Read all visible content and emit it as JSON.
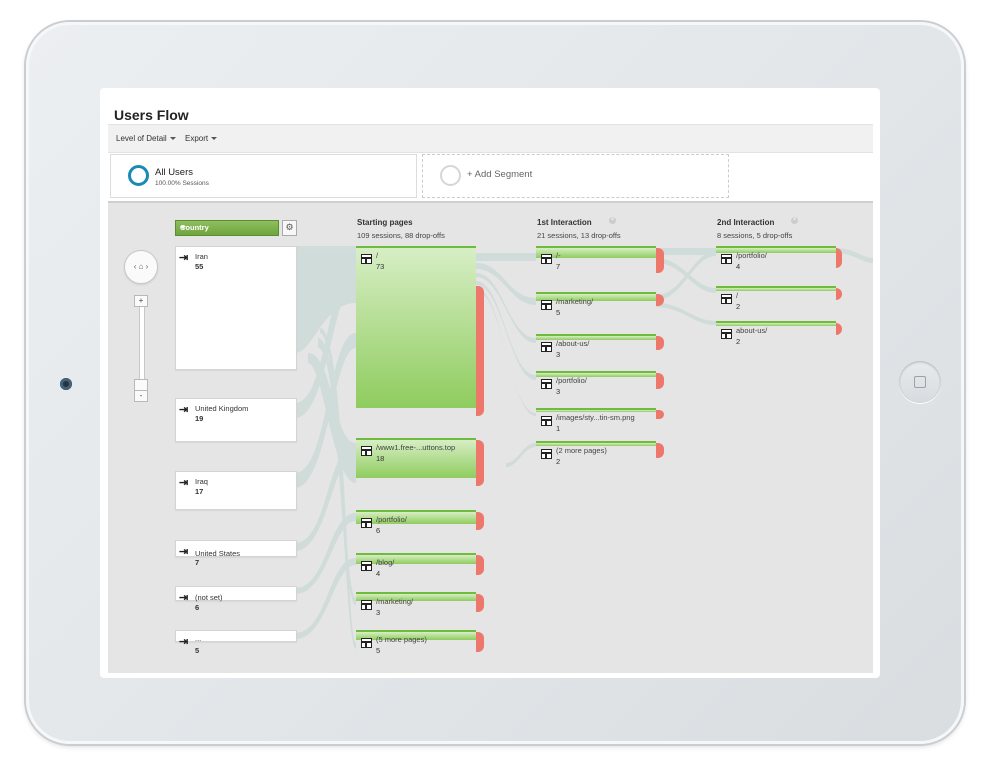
{
  "title": "Users Flow",
  "toolbar": {
    "level_of_detail": "Level of Detail",
    "export": "Export"
  },
  "segments": [
    {
      "name": "All Users",
      "sub": "100.00% Sessions"
    },
    {
      "name": "+ Add Segment"
    }
  ],
  "flow": {
    "dimension": "Country",
    "starting_pages": {
      "title": "Starting pages",
      "summary": "109 sessions, 88 drop-offs"
    },
    "first_interaction": {
      "title": "1st Interaction",
      "summary": "21 sessions, 13 drop-offs"
    },
    "second_interaction": {
      "title": "2nd Interaction",
      "summary": "8 sessions, 5 drop-offs"
    },
    "countries": [
      {
        "label": "Iran",
        "value": "55"
      },
      {
        "label": "United Kingdom",
        "value": "19"
      },
      {
        "label": "Iraq",
        "value": "17"
      },
      {
        "label": "United States",
        "value": "7"
      },
      {
        "label": "(not set)",
        "value": "6"
      },
      {
        "label": "...",
        "value": "5"
      }
    ],
    "start_nodes": [
      {
        "label": "/",
        "value": "73"
      },
      {
        "label": "/www1.free-...uttons.top",
        "value": "18"
      },
      {
        "label": "/portfolio/",
        "value": "6"
      },
      {
        "label": "/blog/",
        "value": "4"
      },
      {
        "label": "/marketing/",
        "value": "3"
      },
      {
        "label": "(5 more pages)",
        "value": "5"
      }
    ],
    "first_nodes": [
      {
        "label": "/-",
        "value": "7"
      },
      {
        "label": "/marketing/",
        "value": "5"
      },
      {
        "label": "/about-us/",
        "value": "3"
      },
      {
        "label": "/portfolio/",
        "value": "3"
      },
      {
        "label": "/images/sty...tin-sm.png",
        "value": "1"
      },
      {
        "label": "(2 more pages)",
        "value": "2"
      }
    ],
    "second_nodes": [
      {
        "label": "/portfolio/",
        "value": "4"
      },
      {
        "label": "/",
        "value": "2"
      },
      {
        "label": "about-us/",
        "value": "2"
      }
    ]
  }
}
